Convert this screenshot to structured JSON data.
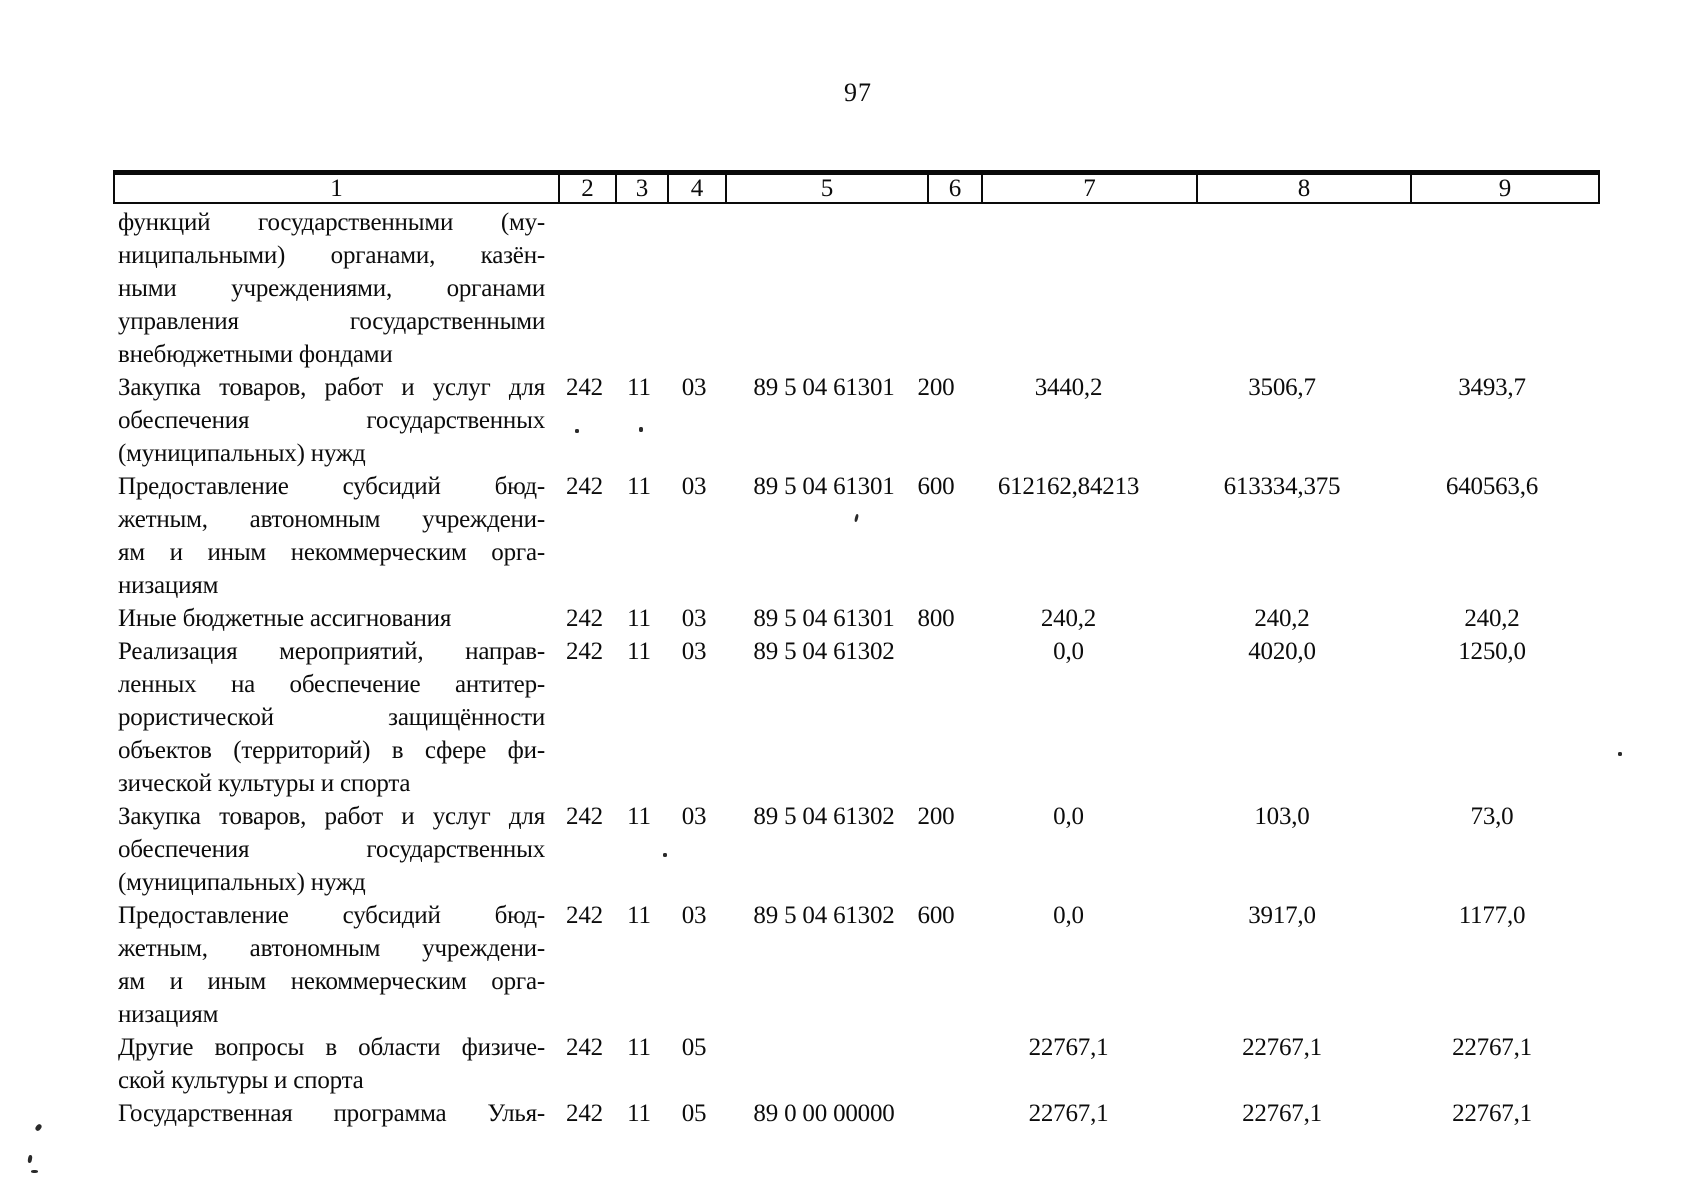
{
  "page": {
    "number": "97"
  },
  "table": {
    "header": [
      "1",
      "2",
      "3",
      "4",
      "5",
      "6",
      "7",
      "8",
      "9"
    ],
    "rows": [
      {
        "name_lines": [
          "функций государственными (му-",
          "ниципальными) органами, казён-",
          "ными учреждениями, органами",
          "управления государственными",
          "внебюджетными фондами"
        ],
        "kvsr": "",
        "rz": "",
        "pr": "",
        "csr": "",
        "vr": "",
        "y2021": "",
        "y2022": "",
        "y2023": ""
      },
      {
        "name_lines": [
          "Закупка товаров, работ и услуг для",
          "обеспечения государственных",
          "(муниципальных) нужд"
        ],
        "kvsr": "242",
        "rz": "11",
        "pr": "03",
        "csr": "89 5 04 61301",
        "vr": "200",
        "y2021": "3440,2",
        "y2022": "3506,7",
        "y2023": "3493,7"
      },
      {
        "name_lines": [
          "Предоставление субсидий бюд-",
          "жетным, автономным учреждени-",
          "ям и иным некоммерческим орга-",
          "низациям"
        ],
        "kvsr": "242",
        "rz": "11",
        "pr": "03",
        "csr": "89 5 04 61301",
        "vr": "600",
        "y2021": "612162,84213",
        "y2022": "613334,375",
        "y2023": "640563,6"
      },
      {
        "name_lines": [
          "Иные бюджетные ассигнования"
        ],
        "kvsr": "242",
        "rz": "11",
        "pr": "03",
        "csr": "89 5 04 61301",
        "vr": "800",
        "y2021": "240,2",
        "y2022": "240,2",
        "y2023": "240,2"
      },
      {
        "name_lines": [
          "Реализация мероприятий, направ-",
          "ленных на обеспечение антитер-",
          "рористической защищённости",
          "объектов (территорий) в сфере фи-",
          "зической культуры и спорта"
        ],
        "kvsr": "242",
        "rz": "11",
        "pr": "03",
        "csr": "89 5 04 61302",
        "vr": "",
        "y2021": "0,0",
        "y2022": "4020,0",
        "y2023": "1250,0"
      },
      {
        "name_lines": [
          "Закупка товаров, работ и услуг для",
          "обеспечения государственных",
          "(муниципальных) нужд"
        ],
        "kvsr": "242",
        "rz": "11",
        "pr": "03",
        "csr": "89 5 04 61302",
        "vr": "200",
        "y2021": "0,0",
        "y2022": "103,0",
        "y2023": "73,0"
      },
      {
        "name_lines": [
          "Предоставление субсидий бюд-",
          "жетным, автономным учреждени-",
          "ям и иным некоммерческим орга-",
          "низациям"
        ],
        "kvsr": "242",
        "rz": "11",
        "pr": "03",
        "csr": "89 5 04 61302",
        "vr": "600",
        "y2021": "0,0",
        "y2022": "3917,0",
        "y2023": "1177,0"
      },
      {
        "name_lines": [
          "Другие вопросы в области физиче-",
          "ской культуры и спорта"
        ],
        "kvsr": "242",
        "rz": "11",
        "pr": "05",
        "csr": "",
        "vr": "",
        "y2021": "22767,1",
        "y2022": "22767,1",
        "y2023": "22767,1"
      },
      {
        "name_lines": [
          "Государственная программа Улья-"
        ],
        "cont": true,
        "kvsr": "242",
        "rz": "11",
        "pr": "05",
        "csr": "89 0 00 00000",
        "vr": "",
        "y2021": "22767,1",
        "y2022": "22767,1",
        "y2023": "22767,1"
      }
    ]
  }
}
